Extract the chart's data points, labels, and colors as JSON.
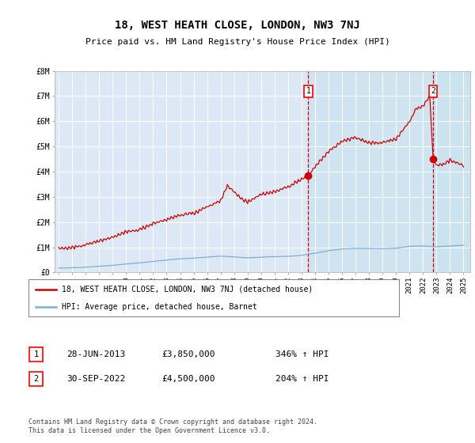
{
  "title": "18, WEST HEATH CLOSE, LONDON, NW3 7NJ",
  "subtitle": "Price paid vs. HM Land Registry's House Price Index (HPI)",
  "background_color": "#ffffff",
  "plot_bg_color": "#dce8f5",
  "plot_bg_color_before": "#dce8f5",
  "shade_color": "#dce8f5",
  "grid_color": "#ffffff",
  "legend_label_red": "18, WEST HEATH CLOSE, LONDON, NW3 7NJ (detached house)",
  "legend_label_blue": "HPI: Average price, detached house, Barnet",
  "annotation1": {
    "label": "1",
    "date": "28-JUN-2013",
    "price": "£3,850,000",
    "hpi": "346% ↑ HPI"
  },
  "annotation2": {
    "label": "2",
    "date": "30-SEP-2022",
    "price": "£4,500,000",
    "hpi": "204% ↑ HPI"
  },
  "footer": "Contains HM Land Registry data © Crown copyright and database right 2024.\nThis data is licensed under the Open Government Licence v3.0.",
  "red_color": "#cc0000",
  "blue_color": "#7ab0d4",
  "dashed_color": "#cc0000",
  "sale1_x": 2013.5,
  "sale1_y": 3850000,
  "sale2_x": 2022.75,
  "sale2_y": 4500000,
  "ylim": [
    0,
    8000000
  ],
  "yticks": [
    0,
    1000000,
    2000000,
    3000000,
    4000000,
    5000000,
    6000000,
    7000000,
    8000000
  ],
  "ytick_labels": [
    "£0",
    "£1M",
    "£2M",
    "£3M",
    "£4M",
    "£5M",
    "£6M",
    "£7M",
    "£8M"
  ],
  "xlim_min": 1994.7,
  "xlim_max": 2025.5
}
